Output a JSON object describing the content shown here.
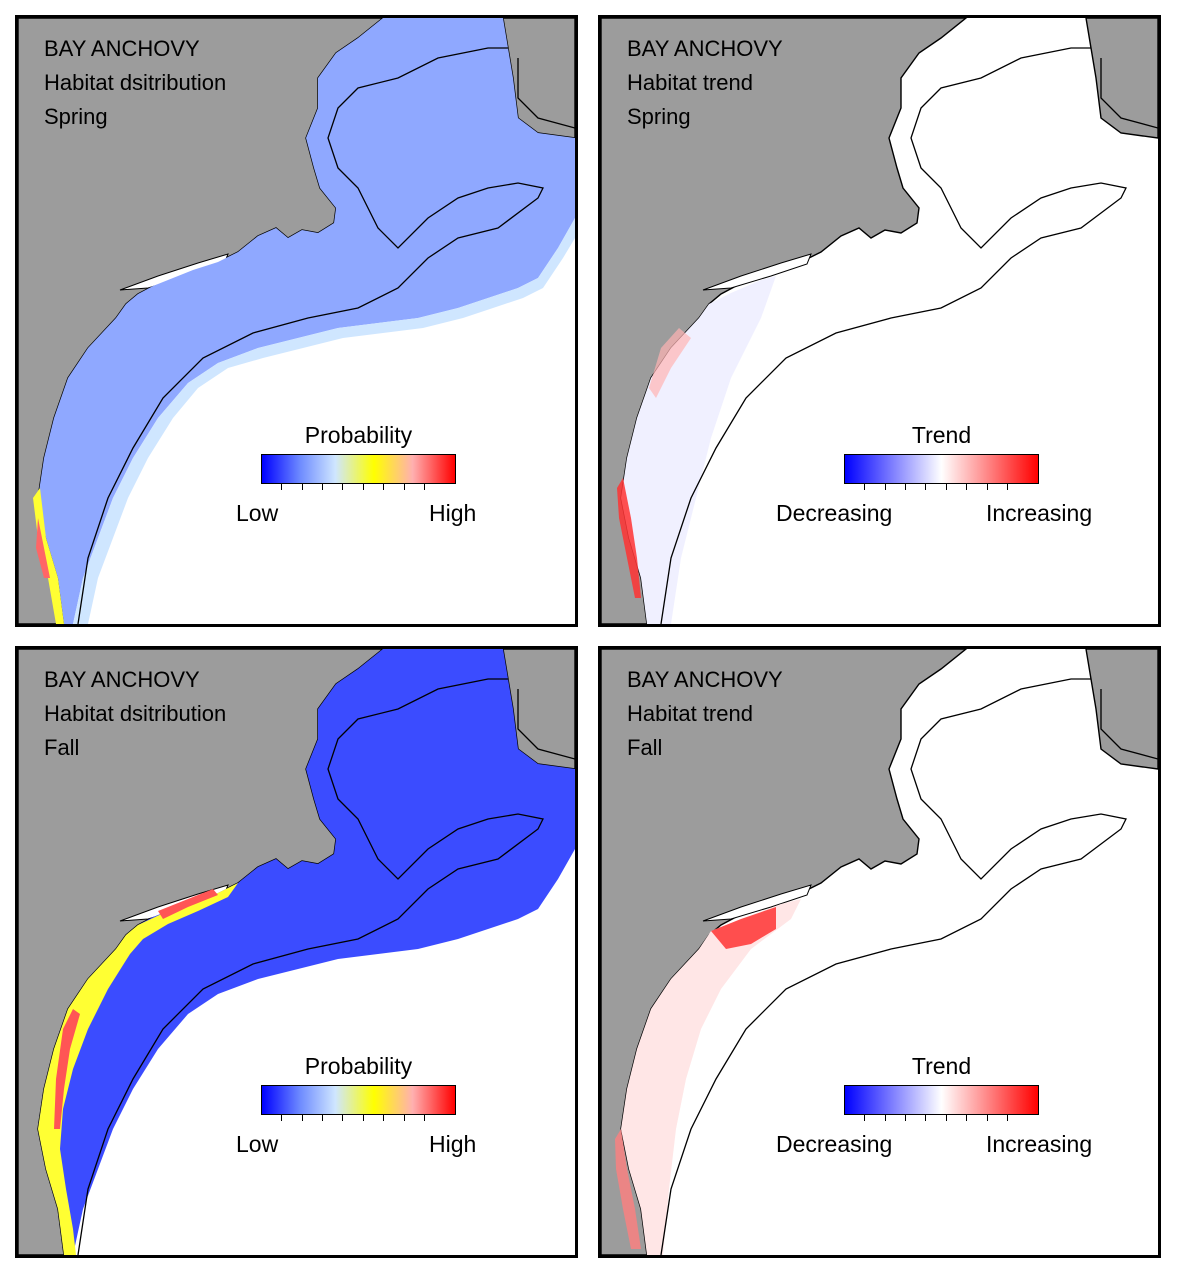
{
  "panels": [
    {
      "species": "BAY ANCHOVY",
      "subtitle": "Habitat dsitribution",
      "season": "Spring",
      "legend": {
        "title": "Probability",
        "low": "Low",
        "high": "High",
        "type": "probability"
      }
    },
    {
      "species": "BAY ANCHOVY",
      "subtitle": "Habitat trend",
      "season": "Spring",
      "legend": {
        "title": "Trend",
        "low": "Decreasing",
        "high": "Increasing",
        "type": "trend"
      }
    },
    {
      "species": "BAY ANCHOVY",
      "subtitle": "Habitat dsitribution",
      "season": "Fall",
      "legend": {
        "title": "Probability",
        "low": "Low",
        "high": "High",
        "type": "probability"
      }
    },
    {
      "species": "BAY ANCHOVY",
      "subtitle": "Habitat trend",
      "season": "Fall",
      "legend": {
        "title": "Trend",
        "low": "Decreasing",
        "high": "Increasing",
        "type": "trend"
      }
    }
  ],
  "colors": {
    "land": "#9c9c9c",
    "probability_scale": [
      "#0000ff",
      "#6f8cff",
      "#cfe6ff",
      "#ffff00",
      "#ffb0b0",
      "#ff0000"
    ],
    "trend_scale": [
      "#0000ff",
      "#9a9aff",
      "#ffffff",
      "#ff9a9a",
      "#ff0000"
    ],
    "spring_fill": "#8fa8ff",
    "fall_fill": "#3b4cff",
    "nearshore_high": "#ffff33",
    "trend_increase": "#ff3333"
  }
}
